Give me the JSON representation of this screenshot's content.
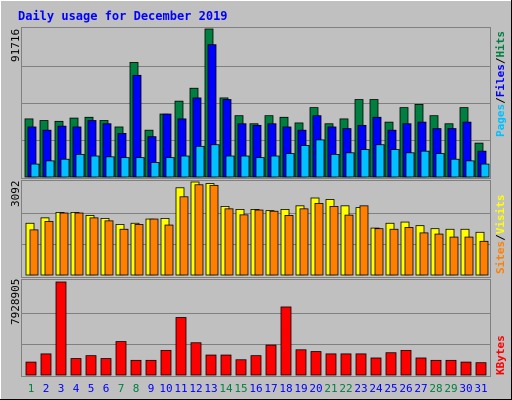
{
  "title": "Daily usage for December 2019",
  "colors": {
    "background": "#C0C0C0",
    "title": "#0000FF",
    "hits": "#008040",
    "files": "#0000FF",
    "pages": "#00C0FF",
    "visits": "#FFFF00",
    "sites": "#FF8000",
    "kbytes": "#FF0000",
    "weekend_day": "#008040",
    "weekday": "#0000FF"
  },
  "axis_max_labels": {
    "top": "91716",
    "middle": "3092",
    "bottom": "7928905"
  },
  "legend": {
    "top": [
      "Pages",
      "Files",
      "Hits"
    ],
    "middle": [
      "Sites",
      "Visits"
    ],
    "bottom": [
      "KBytes"
    ]
  },
  "chart_data": [
    {
      "type": "bar",
      "title": "Daily usage for December 2019",
      "panel": "top",
      "x": [
        1,
        2,
        3,
        4,
        5,
        6,
        7,
        8,
        9,
        10,
        11,
        12,
        13,
        14,
        15,
        16,
        17,
        18,
        19,
        20,
        21,
        22,
        23,
        24,
        25,
        26,
        27,
        28,
        29,
        30,
        31
      ],
      "weekend_days": [
        1,
        7,
        8,
        14,
        15,
        21,
        22,
        28,
        29
      ],
      "ylim": [
        0,
        91716
      ],
      "series": [
        {
          "name": "Hits",
          "values": [
            36000,
            35000,
            34500,
            36500,
            37000,
            35000,
            31000,
            71000,
            29000,
            39000,
            47000,
            55000,
            91716,
            49000,
            38000,
            33000,
            38000,
            37000,
            33500,
            43000,
            33000,
            36000,
            48000,
            48000,
            34000,
            43000,
            45000,
            38000,
            33000,
            43000,
            21000
          ]
        },
        {
          "name": "Files",
          "values": [
            31000,
            29000,
            31500,
            31000,
            35000,
            33000,
            27000,
            63000,
            25000,
            39000,
            36000,
            49000,
            82000,
            48000,
            33000,
            32000,
            33000,
            31000,
            29000,
            38000,
            31000,
            30000,
            32000,
            37000,
            29000,
            33000,
            34000,
            30000,
            30000,
            34000,
            16000
          ]
        },
        {
          "name": "Pages",
          "values": [
            8000,
            10000,
            11000,
            14000,
            13000,
            12500,
            12000,
            12000,
            9000,
            12000,
            13000,
            19000,
            20000,
            13000,
            13000,
            12000,
            13000,
            14500,
            19500,
            23000,
            14000,
            15000,
            17000,
            20000,
            17000,
            15000,
            16000,
            14500,
            11000,
            10000,
            8000
          ]
        }
      ]
    },
    {
      "type": "bar",
      "panel": "middle",
      "x": [
        1,
        2,
        3,
        4,
        5,
        6,
        7,
        8,
        9,
        10,
        11,
        12,
        13,
        14,
        15,
        16,
        17,
        18,
        19,
        20,
        21,
        22,
        23,
        24,
        25,
        26,
        27,
        28,
        29,
        30,
        31
      ],
      "ylim": [
        0,
        3092
      ],
      "series": [
        {
          "name": "Visits",
          "values": [
            1720,
            1900,
            2080,
            2080,
            1980,
            1880,
            1680,
            1720,
            1860,
            1880,
            2900,
            3092,
            3040,
            2280,
            2180,
            2180,
            2140,
            2180,
            2300,
            2560,
            2510,
            2300,
            2240,
            1560,
            1720,
            1760,
            1640,
            1540,
            1520,
            1520,
            1420
          ]
        },
        {
          "name": "Sites",
          "values": [
            1500,
            1780,
            2060,
            2060,
            1900,
            1800,
            1520,
            1680,
            1860,
            1660,
            2600,
            3000,
            2980,
            2200,
            2000,
            2160,
            2120,
            1980,
            2200,
            2380,
            2280,
            1990,
            2300,
            1540,
            1520,
            1580,
            1400,
            1360,
            1260,
            1260,
            1120
          ]
        }
      ]
    },
    {
      "type": "bar",
      "panel": "bottom",
      "x": [
        1,
        2,
        3,
        4,
        5,
        6,
        7,
        8,
        9,
        10,
        11,
        12,
        13,
        14,
        15,
        16,
        17,
        18,
        19,
        20,
        21,
        22,
        23,
        24,
        25,
        26,
        27,
        28,
        29,
        30,
        31
      ],
      "ylim": [
        0,
        7928905
      ],
      "series": [
        {
          "name": "KBytes",
          "values": [
            1100000,
            1800000,
            7928905,
            1400000,
            1650000,
            1400000,
            2850000,
            1250000,
            1250000,
            2100000,
            4900000,
            2750000,
            1700000,
            1700000,
            1300000,
            1650000,
            2550000,
            5800000,
            2150000,
            2000000,
            1800000,
            1800000,
            1800000,
            1450000,
            1900000,
            2100000,
            1450000,
            1250000,
            1250000,
            1100000,
            1050000
          ]
        }
      ]
    }
  ]
}
